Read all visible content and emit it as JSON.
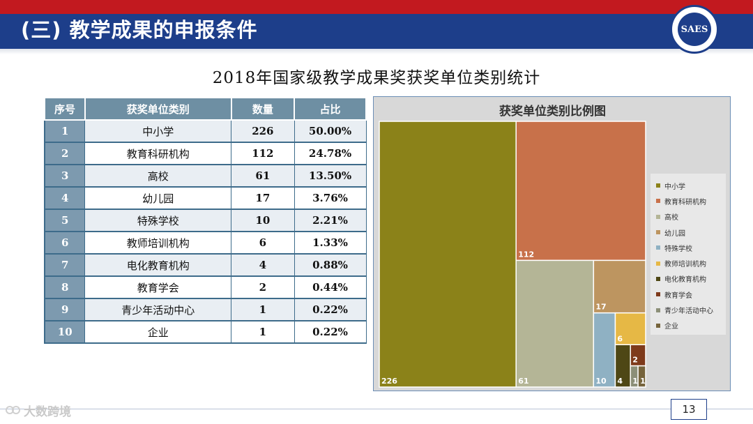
{
  "header": {
    "title": "(三) 教学成果的申报条件",
    "logo_text": "SAES"
  },
  "page": {
    "title": "2018年国家级教学成果奖获奖单位类别统计",
    "page_number": "13"
  },
  "table": {
    "headers": [
      "序号",
      "获奖单位类别",
      "数量",
      "占比"
    ],
    "rows": [
      {
        "idx": "1",
        "category": "中小学",
        "count": "226",
        "pct": "50.00%"
      },
      {
        "idx": "2",
        "category": "教育科研机构",
        "count": "112",
        "pct": "24.78%"
      },
      {
        "idx": "3",
        "category": "高校",
        "count": "61",
        "pct": "13.50%"
      },
      {
        "idx": "4",
        "category": "幼儿园",
        "count": "17",
        "pct": "3.76%"
      },
      {
        "idx": "5",
        "category": "特殊学校",
        "count": "10",
        "pct": "2.21%"
      },
      {
        "idx": "6",
        "category": "教师培训机构",
        "count": "6",
        "pct": "1.33%"
      },
      {
        "idx": "7",
        "category": "电化教育机构",
        "count": "4",
        "pct": "0.88%"
      },
      {
        "idx": "8",
        "category": "教育学会",
        "count": "2",
        "pct": "0.44%"
      },
      {
        "idx": "9",
        "category": "青少年活动中心",
        "count": "1",
        "pct": "0.22%"
      },
      {
        "idx": "10",
        "category": "企业",
        "count": "1",
        "pct": "0.22%"
      }
    ]
  },
  "chart_data": {
    "type": "treemap",
    "title": "获奖单位类别比例图",
    "legend_position": "right",
    "categories": [
      "中小学",
      "教育科研机构",
      "高校",
      "幼儿园",
      "特殊学校",
      "教师培训机构",
      "电化教育机构",
      "教育学会",
      "青少年活动中心",
      "企业"
    ],
    "values": [
      226,
      112,
      61,
      17,
      10,
      6,
      4,
      2,
      1,
      1
    ],
    "colors": [
      "#8b8219",
      "#c8714a",
      "#b4b596",
      "#bd9560",
      "#8fb1c3",
      "#e6b845",
      "#4e4715",
      "#7e3a1b",
      "#8c8f78",
      "#76643c"
    ]
  },
  "watermark": {
    "text": "大数跨境"
  }
}
